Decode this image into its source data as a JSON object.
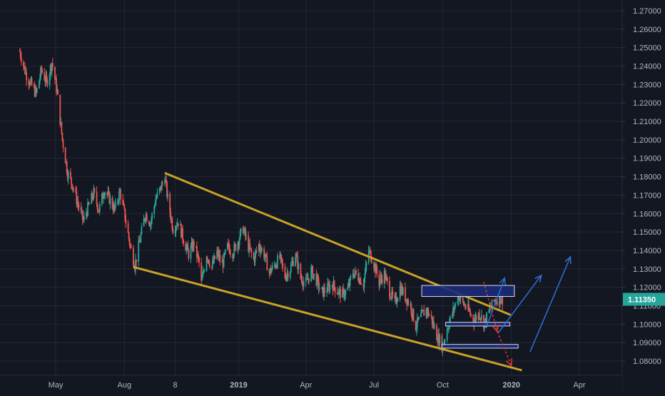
{
  "chart_data": {
    "type": "candlestick",
    "title": "",
    "xlabel": "",
    "ylabel": "",
    "ylim": [
      1.073,
      1.277
    ],
    "grid": true,
    "y_ticks": [
      "1.27000",
      "1.26000",
      "1.25000",
      "1.24000",
      "1.23000",
      "1.22000",
      "1.21000",
      "1.20000",
      "1.19000",
      "1.18000",
      "1.17000",
      "1.16000",
      "1.15000",
      "1.14000",
      "1.13000",
      "1.12000",
      "1.11000",
      "1.10000",
      "1.09000",
      "1.08000"
    ],
    "y_tick_values": [
      1.27,
      1.26,
      1.25,
      1.24,
      1.23,
      1.22,
      1.21,
      1.2,
      1.19,
      1.18,
      1.17,
      1.16,
      1.15,
      1.14,
      1.13,
      1.12,
      1.11,
      1.1,
      1.09,
      1.08
    ],
    "x_ticks": [
      "May",
      "Aug",
      "8",
      "2019",
      "Apr",
      "Jul",
      "Oct",
      "2020",
      "Apr"
    ],
    "x_tick_dates": [
      "2018-05-01",
      "2018-08-01",
      "2018-10-08",
      "2019-01-01",
      "2019-04-01",
      "2019-07-01",
      "2019-10-01",
      "2020-01-01",
      "2020-04-01"
    ],
    "last_price": "1.11350",
    "last_price_value": 1.1135,
    "price_path": [
      [
        "2018-03-14",
        1.248
      ],
      [
        "2018-03-22",
        1.236
      ],
      [
        "2018-03-29",
        1.23
      ],
      [
        "2018-04-05",
        1.225
      ],
      [
        "2018-04-12",
        1.238
      ],
      [
        "2018-04-19",
        1.231
      ],
      [
        "2018-04-26",
        1.242
      ],
      [
        "2018-05-03",
        1.226
      ],
      [
        "2018-05-10",
        1.2
      ],
      [
        "2018-05-17",
        1.182
      ],
      [
        "2018-05-24",
        1.175
      ],
      [
        "2018-05-31",
        1.165
      ],
      [
        "2018-06-07",
        1.156
      ],
      [
        "2018-06-14",
        1.164
      ],
      [
        "2018-06-21",
        1.171
      ],
      [
        "2018-06-28",
        1.162
      ],
      [
        "2018-07-05",
        1.173
      ],
      [
        "2018-07-12",
        1.168
      ],
      [
        "2018-07-19",
        1.162
      ],
      [
        "2018-07-26",
        1.172
      ],
      [
        "2018-08-02",
        1.158
      ],
      [
        "2018-08-09",
        1.142
      ],
      [
        "2018-08-15",
        1.132
      ],
      [
        "2018-08-22",
        1.146
      ],
      [
        "2018-08-29",
        1.16
      ],
      [
        "2018-09-05",
        1.155
      ],
      [
        "2018-09-12",
        1.168
      ],
      [
        "2018-09-19",
        1.174
      ],
      [
        "2018-09-24",
        1.18
      ],
      [
        "2018-09-28",
        1.168
      ],
      [
        "2018-10-05",
        1.152
      ],
      [
        "2018-10-12",
        1.156
      ],
      [
        "2018-10-19",
        1.146
      ],
      [
        "2018-10-26",
        1.138
      ],
      [
        "2018-11-02",
        1.144
      ],
      [
        "2018-11-09",
        1.133
      ],
      [
        "2018-11-12",
        1.122
      ],
      [
        "2018-11-19",
        1.138
      ],
      [
        "2018-11-26",
        1.131
      ],
      [
        "2018-12-03",
        1.139
      ],
      [
        "2018-12-10",
        1.132
      ],
      [
        "2018-12-17",
        1.142
      ],
      [
        "2018-12-24",
        1.139
      ],
      [
        "2018-12-31",
        1.145
      ],
      [
        "2019-01-07",
        1.152
      ],
      [
        "2019-01-14",
        1.142
      ],
      [
        "2019-01-21",
        1.135
      ],
      [
        "2019-01-28",
        1.143
      ],
      [
        "2019-02-04",
        1.138
      ],
      [
        "2019-02-11",
        1.128
      ],
      [
        "2019-02-18",
        1.132
      ],
      [
        "2019-02-25",
        1.136
      ],
      [
        "2019-03-04",
        1.126
      ],
      [
        "2019-03-11",
        1.13
      ],
      [
        "2019-03-18",
        1.138
      ],
      [
        "2019-03-25",
        1.125
      ],
      [
        "2019-04-01",
        1.122
      ],
      [
        "2019-04-08",
        1.129
      ],
      [
        "2019-04-15",
        1.124
      ],
      [
        "2019-04-22",
        1.117
      ],
      [
        "2019-04-29",
        1.119
      ],
      [
        "2019-05-06",
        1.122
      ],
      [
        "2019-05-13",
        1.118
      ],
      [
        "2019-05-20",
        1.116
      ],
      [
        "2019-05-27",
        1.119
      ],
      [
        "2019-06-03",
        1.128
      ],
      [
        "2019-06-10",
        1.126
      ],
      [
        "2019-06-17",
        1.122
      ],
      [
        "2019-06-24",
        1.14
      ],
      [
        "2019-07-01",
        1.133
      ],
      [
        "2019-07-08",
        1.123
      ],
      [
        "2019-07-15",
        1.127
      ],
      [
        "2019-07-22",
        1.118
      ],
      [
        "2019-07-29",
        1.111
      ],
      [
        "2019-08-05",
        1.12
      ],
      [
        "2019-08-12",
        1.115
      ],
      [
        "2019-08-19",
        1.11
      ],
      [
        "2019-08-26",
        1.099
      ],
      [
        "2019-09-02",
        1.104
      ],
      [
        "2019-09-09",
        1.108
      ],
      [
        "2019-09-16",
        1.103
      ],
      [
        "2019-09-23",
        1.094
      ],
      [
        "2019-10-01",
        1.088
      ],
      [
        "2019-10-08",
        1.099
      ],
      [
        "2019-10-15",
        1.107
      ],
      [
        "2019-10-22",
        1.116
      ],
      [
        "2019-10-29",
        1.111
      ],
      [
        "2019-11-05",
        1.107
      ],
      [
        "2019-11-12",
        1.102
      ],
      [
        "2019-11-19",
        1.106
      ],
      [
        "2019-11-26",
        1.1
      ],
      [
        "2019-12-03",
        1.108
      ],
      [
        "2019-12-10",
        1.113
      ],
      [
        "2019-12-17",
        1.114
      ],
      [
        "2019-12-20",
        1.1135
      ]
    ],
    "colors": {
      "background": "#131722",
      "grid": "#242733",
      "axis_text": "#b2b5be",
      "candle_up": "#26a69a",
      "candle_down": "#ef5350",
      "channel": "#c9a227",
      "zone_fill": "#1c2a78",
      "zone_stroke": "#d9dde6",
      "arrow_up": "#2f6fd6",
      "arrow_down": "#e53935",
      "price_label_bg": "#26a69a",
      "price_label_text": "#ffffff"
    },
    "annotations": {
      "channel_upper": [
        [
          "2018-09-24",
          1.182
        ],
        [
          "2019-12-31",
          1.105
        ]
      ],
      "channel_lower": [
        [
          "2018-08-13",
          1.131
        ],
        [
          "2020-01-15",
          1.075
        ]
      ],
      "zones": [
        {
          "from": "2019-09-03",
          "to": "2020-01-05",
          "low": 1.115,
          "high": 1.121
        },
        {
          "from": "2019-10-05",
          "to": "2019-12-30",
          "low": 1.099,
          "high": 1.101
        },
        {
          "from": "2019-09-30",
          "to": "2020-01-10",
          "low": 1.087,
          "high": 1.089
        }
      ],
      "arrows_up": [
        [
          [
            "2019-11-29",
            1.099
          ],
          [
            "2019-12-23",
            1.125
          ]
        ],
        [
          [
            "2019-12-14",
            1.095
          ],
          [
            "2020-02-10",
            1.1265
          ]
        ],
        [
          [
            "2020-01-26",
            1.085
          ],
          [
            "2020-03-20",
            1.1365
          ]
        ]
      ],
      "arrows_down": [
        [
          [
            "2019-11-25",
            1.123
          ],
          [
            "2019-12-13",
            1.096
          ]
        ],
        [
          [
            "2019-12-13",
            1.096
          ],
          [
            "2020-01-01",
            1.0775
          ]
        ]
      ]
    }
  }
}
